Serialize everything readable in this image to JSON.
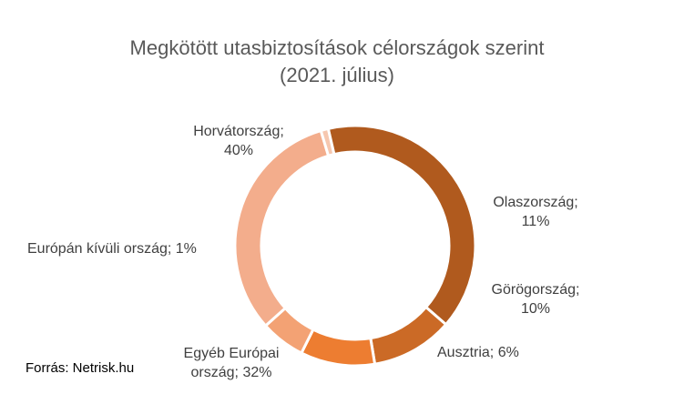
{
  "chart_data": {
    "type": "pie",
    "subtype": "donut",
    "title": "Megkötött utasbiztosítások célországok szerint",
    "subtitle": "(2021. július)",
    "slices": [
      {
        "name": "Horvátország",
        "value": 40,
        "label_line1": "Horvátország;",
        "label_line2": "40%",
        "color": "#B05A1E"
      },
      {
        "name": "Olaszország",
        "value": 11,
        "label_line1": "Olaszország;",
        "label_line2": "11%",
        "color": "#CB6A26"
      },
      {
        "name": "Görögország",
        "value": 10,
        "label_line1": "Görögország;",
        "label_line2": "10%",
        "color": "#ED7D31"
      },
      {
        "name": "Ausztria",
        "value": 6,
        "label_line1": "Ausztria; 6%",
        "label_line2": "",
        "color": "#F3A274"
      },
      {
        "name": "Egyéb Európai ország",
        "value": 32,
        "label_line1": "Egyéb Európai",
        "label_line2": "ország; 32%",
        "color": "#F3AD8C"
      },
      {
        "name": "Európán kívüli ország",
        "value": 1,
        "label_line1": "Európán kívüli ország; 1%",
        "label_line2": "",
        "color": "#F6C7AF"
      }
    ]
  },
  "source": "Forrás: Netrisk.hu"
}
